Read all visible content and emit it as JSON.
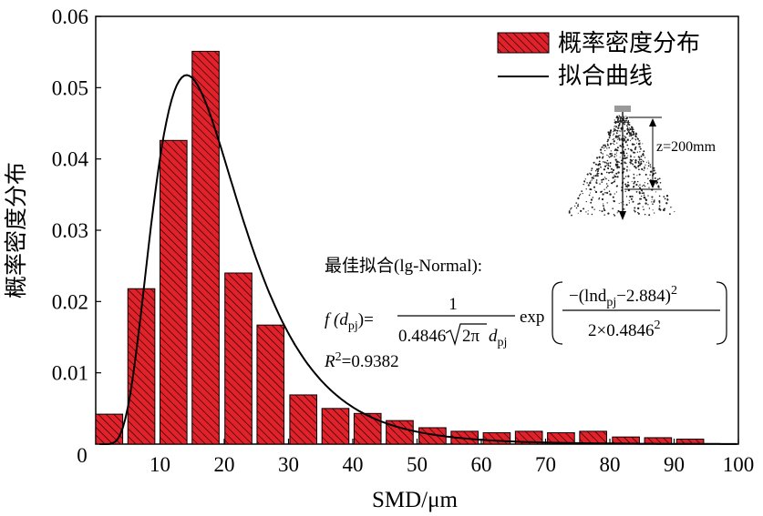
{
  "chart_data": {
    "type": "bar",
    "title": "",
    "xlabel": "SMD/μm",
    "ylabel": "概率密度分布",
    "xlim": [
      0,
      100
    ],
    "ylim": [
      0,
      0.06
    ],
    "xticks": [
      "10",
      "20",
      "30",
      "40",
      "50",
      "60",
      "70",
      "80",
      "90",
      "100"
    ],
    "xticks_values": [
      10,
      20,
      30,
      40,
      50,
      60,
      70,
      80,
      90,
      100
    ],
    "x_origin_label": "0",
    "yticks": [
      "0.01",
      "0.02",
      "0.03",
      "0.04",
      "0.05",
      "0.06"
    ],
    "yticks_values": [
      0.01,
      0.02,
      0.03,
      0.04,
      0.05,
      0.06
    ],
    "series": [
      {
        "name": "概率密度分布",
        "type": "bar",
        "color": "#e1222b",
        "bin_width": 4.2,
        "x": [
          2.1,
          7.1,
          12.1,
          17.1,
          22.2,
          27.2,
          32.3,
          37.3,
          42.3,
          47.3,
          52.4,
          57.4,
          62.4,
          67.4,
          72.4,
          77.4,
          82.5,
          87.5,
          92.5
        ],
        "values": [
          0.0042,
          0.0218,
          0.0426,
          0.0551,
          0.024,
          0.0167,
          0.0069,
          0.005,
          0.0043,
          0.0033,
          0.0023,
          0.0018,
          0.0016,
          0.0018,
          0.0016,
          0.0018,
          0.001,
          0.0009,
          0.0007
        ]
      },
      {
        "name": "拟合曲线",
        "type": "line",
        "color": "#000000",
        "model": "lognormal",
        "mu": 2.884,
        "sigma": 0.4846
      }
    ],
    "legend": {
      "position": "top-right",
      "entries": [
        "概率密度分布",
        "拟合曲线"
      ]
    },
    "annotations": {
      "fit_title": "最佳拟合(lg-Normal):",
      "formula_lhs": "f (d",
      "formula_lhs_sub": "pj",
      "formula_lhs_end": ")=",
      "frac_numerator": "1",
      "frac_denominator": "0.4846",
      "sqrt_content": "2π",
      "denom_var": "d",
      "denom_var_sub": "pj",
      "exp_label": "exp",
      "exp_numerator": "−(lnd",
      "exp_numerator_sub": "pj",
      "exp_numerator_end": "−2.884)",
      "exp_numerator_sup": "2",
      "exp_denominator": "2×0.4846",
      "exp_denominator_sup": "2",
      "r2_label": "R",
      "r2_sup": "2",
      "r2_value": "=0.9382",
      "spray_label": "z=200mm"
    }
  }
}
